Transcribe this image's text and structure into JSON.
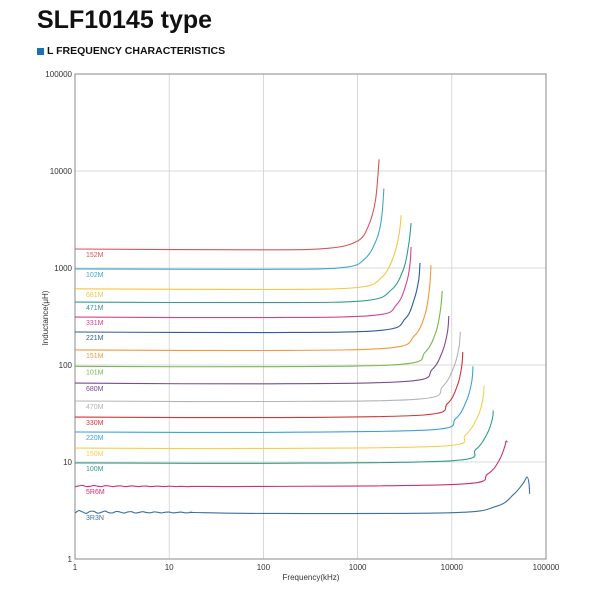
{
  "header": {
    "title": "SLF10145 type",
    "subtitle": "L FREQUENCY CHARACTERISTICS",
    "accent_color": "#1f6fb8"
  },
  "chart_data": {
    "type": "line",
    "title": "L FREQUENCY CHARACTERISTICS",
    "xlabel": "Frequency(kHz)",
    "ylabel": "Inductance(μH)",
    "xscale": "log",
    "yscale": "log",
    "xlim": [
      1,
      100000
    ],
    "ylim": [
      1,
      100000
    ],
    "xticks": [
      "1",
      "10",
      "100",
      "1000",
      "10000",
      "100000"
    ],
    "yticks": [
      "1",
      "10",
      "100",
      "1000",
      "10000",
      "100000"
    ],
    "grid": true,
    "legend": "inline-left",
    "series": [
      {
        "name": "152M",
        "color": "#d9545c",
        "flat": 1570,
        "points": [
          [
            1,
            1570
          ],
          [
            100,
            1540
          ],
          [
            500,
            1600
          ],
          [
            1000,
            1900
          ],
          [
            1300,
            2700
          ],
          [
            1550,
            5000
          ],
          [
            1690,
            13200
          ]
        ]
      },
      {
        "name": "102M",
        "color": "#3fa7c9",
        "flat": 980,
        "points": [
          [
            1,
            980
          ],
          [
            100,
            970
          ],
          [
            700,
            1010
          ],
          [
            1200,
            1250
          ],
          [
            1600,
            2000
          ],
          [
            1800,
            3300
          ],
          [
            1900,
            6600
          ]
        ]
      },
      {
        "name": "681M",
        "color": "#f2c744",
        "flat": 610,
        "points": [
          [
            1,
            610
          ],
          [
            100,
            600
          ],
          [
            1000,
            630
          ],
          [
            1800,
            800
          ],
          [
            2400,
            1300
          ],
          [
            2750,
            2200
          ],
          [
            2900,
            3500
          ]
        ]
      },
      {
        "name": "471M",
        "color": "#2f9e8f",
        "flat": 445,
        "points": [
          [
            1,
            445
          ],
          [
            100,
            440
          ],
          [
            1200,
            460
          ],
          [
            2300,
            600
          ],
          [
            3100,
            1000
          ],
          [
            3500,
            1800
          ],
          [
            3700,
            2900
          ]
        ]
      },
      {
        "name": "331M",
        "color": "#d6428c",
        "flat": 312,
        "points": [
          [
            1,
            312
          ],
          [
            100,
            308
          ],
          [
            1500,
            325
          ],
          [
            2600,
            420
          ],
          [
            3300,
            700
          ],
          [
            3600,
            1100
          ],
          [
            3700,
            1650
          ]
        ]
      },
      {
        "name": "221M",
        "color": "#2d5d9a",
        "flat": 219,
        "points": [
          [
            1,
            219
          ],
          [
            100,
            216
          ],
          [
            1800,
            228
          ],
          [
            3200,
            300
          ],
          [
            4000,
            480
          ],
          [
            4450,
            750
          ],
          [
            4600,
            1130
          ]
        ]
      },
      {
        "name": "151M",
        "color": "#ee9a3a",
        "flat": 143,
        "points": [
          [
            1,
            143
          ],
          [
            100,
            141
          ],
          [
            2200,
            150
          ],
          [
            4000,
            200
          ],
          [
            5200,
            330
          ],
          [
            5800,
            620
          ],
          [
            6000,
            1070
          ]
        ]
      },
      {
        "name": "101M",
        "color": "#78b84a",
        "flat": 97,
        "points": [
          [
            1,
            97
          ],
          [
            100,
            96
          ],
          [
            3000,
            102
          ],
          [
            5200,
            135
          ],
          [
            6800,
            220
          ],
          [
            7600,
            380
          ],
          [
            7900,
            580
          ]
        ]
      },
      {
        "name": "680M",
        "color": "#7b4a96",
        "flat": 65,
        "points": [
          [
            1,
            65
          ],
          [
            100,
            64
          ],
          [
            3500,
            68
          ],
          [
            6200,
            90
          ],
          [
            8000,
            140
          ],
          [
            9000,
            220
          ],
          [
            9300,
            320
          ]
        ]
      },
      {
        "name": "470M",
        "color": "#b4b4b4",
        "flat": 42.5,
        "points": [
          [
            1,
            42.5
          ],
          [
            100,
            42
          ],
          [
            4500,
            44.5
          ],
          [
            8000,
            60
          ],
          [
            10500,
            95
          ],
          [
            11900,
            150
          ],
          [
            12300,
            220
          ]
        ]
      },
      {
        "name": "330M",
        "color": "#d2343c",
        "flat": 29,
        "points": [
          [
            1,
            29
          ],
          [
            100,
            28.7
          ],
          [
            5000,
            30.5
          ],
          [
            9000,
            40
          ],
          [
            11500,
            62
          ],
          [
            12700,
            95
          ],
          [
            13100,
            136
          ]
        ]
      },
      {
        "name": "220M",
        "color": "#3aa3d4",
        "flat": 20.4,
        "points": [
          [
            1,
            20.4
          ],
          [
            100,
            20.2
          ],
          [
            6000,
            21.5
          ],
          [
            11000,
            28
          ],
          [
            14500,
            44
          ],
          [
            16300,
            68
          ],
          [
            16800,
            97
          ]
        ]
      },
      {
        "name": "150M",
        "color": "#f3cf4f",
        "flat": 13.9,
        "points": [
          [
            1,
            13.9
          ],
          [
            100,
            13.8
          ],
          [
            8000,
            14.6
          ],
          [
            14000,
            19
          ],
          [
            19000,
            30
          ],
          [
            21400,
            45
          ],
          [
            22000,
            61
          ]
        ]
      },
      {
        "name": "100M",
        "color": "#2f9e8a",
        "flat": 9.8,
        "points": [
          [
            1,
            9.8
          ],
          [
            100,
            9.7
          ],
          [
            10000,
            10.3
          ],
          [
            18000,
            13.5
          ],
          [
            24000,
            20
          ],
          [
            27000,
            28
          ],
          [
            27500,
            34
          ]
        ]
      },
      {
        "name": "5R6M",
        "color": "#cf2f76",
        "flat": 5.66,
        "points": [
          [
            1,
            5.66
          ],
          [
            100,
            5.6
          ],
          [
            12000,
            5.9
          ],
          [
            24000,
            7.5
          ],
          [
            32000,
            10.5
          ],
          [
            36500,
            14.5
          ],
          [
            37600,
            16.4
          ],
          [
            39000,
            16
          ]
        ]
      },
      {
        "name": "3R3N",
        "color": "#3b6f9e",
        "flat": 3.05,
        "points": [
          [
            1,
            3.05
          ],
          [
            2,
            3.0
          ],
          [
            100,
            2.95
          ],
          [
            10000,
            3.0
          ],
          [
            30000,
            3.5
          ],
          [
            45000,
            4.6
          ],
          [
            57000,
            6.0
          ],
          [
            63000,
            7.0
          ],
          [
            66000,
            6.0
          ],
          [
            67000,
            4.7
          ]
        ]
      }
    ]
  }
}
